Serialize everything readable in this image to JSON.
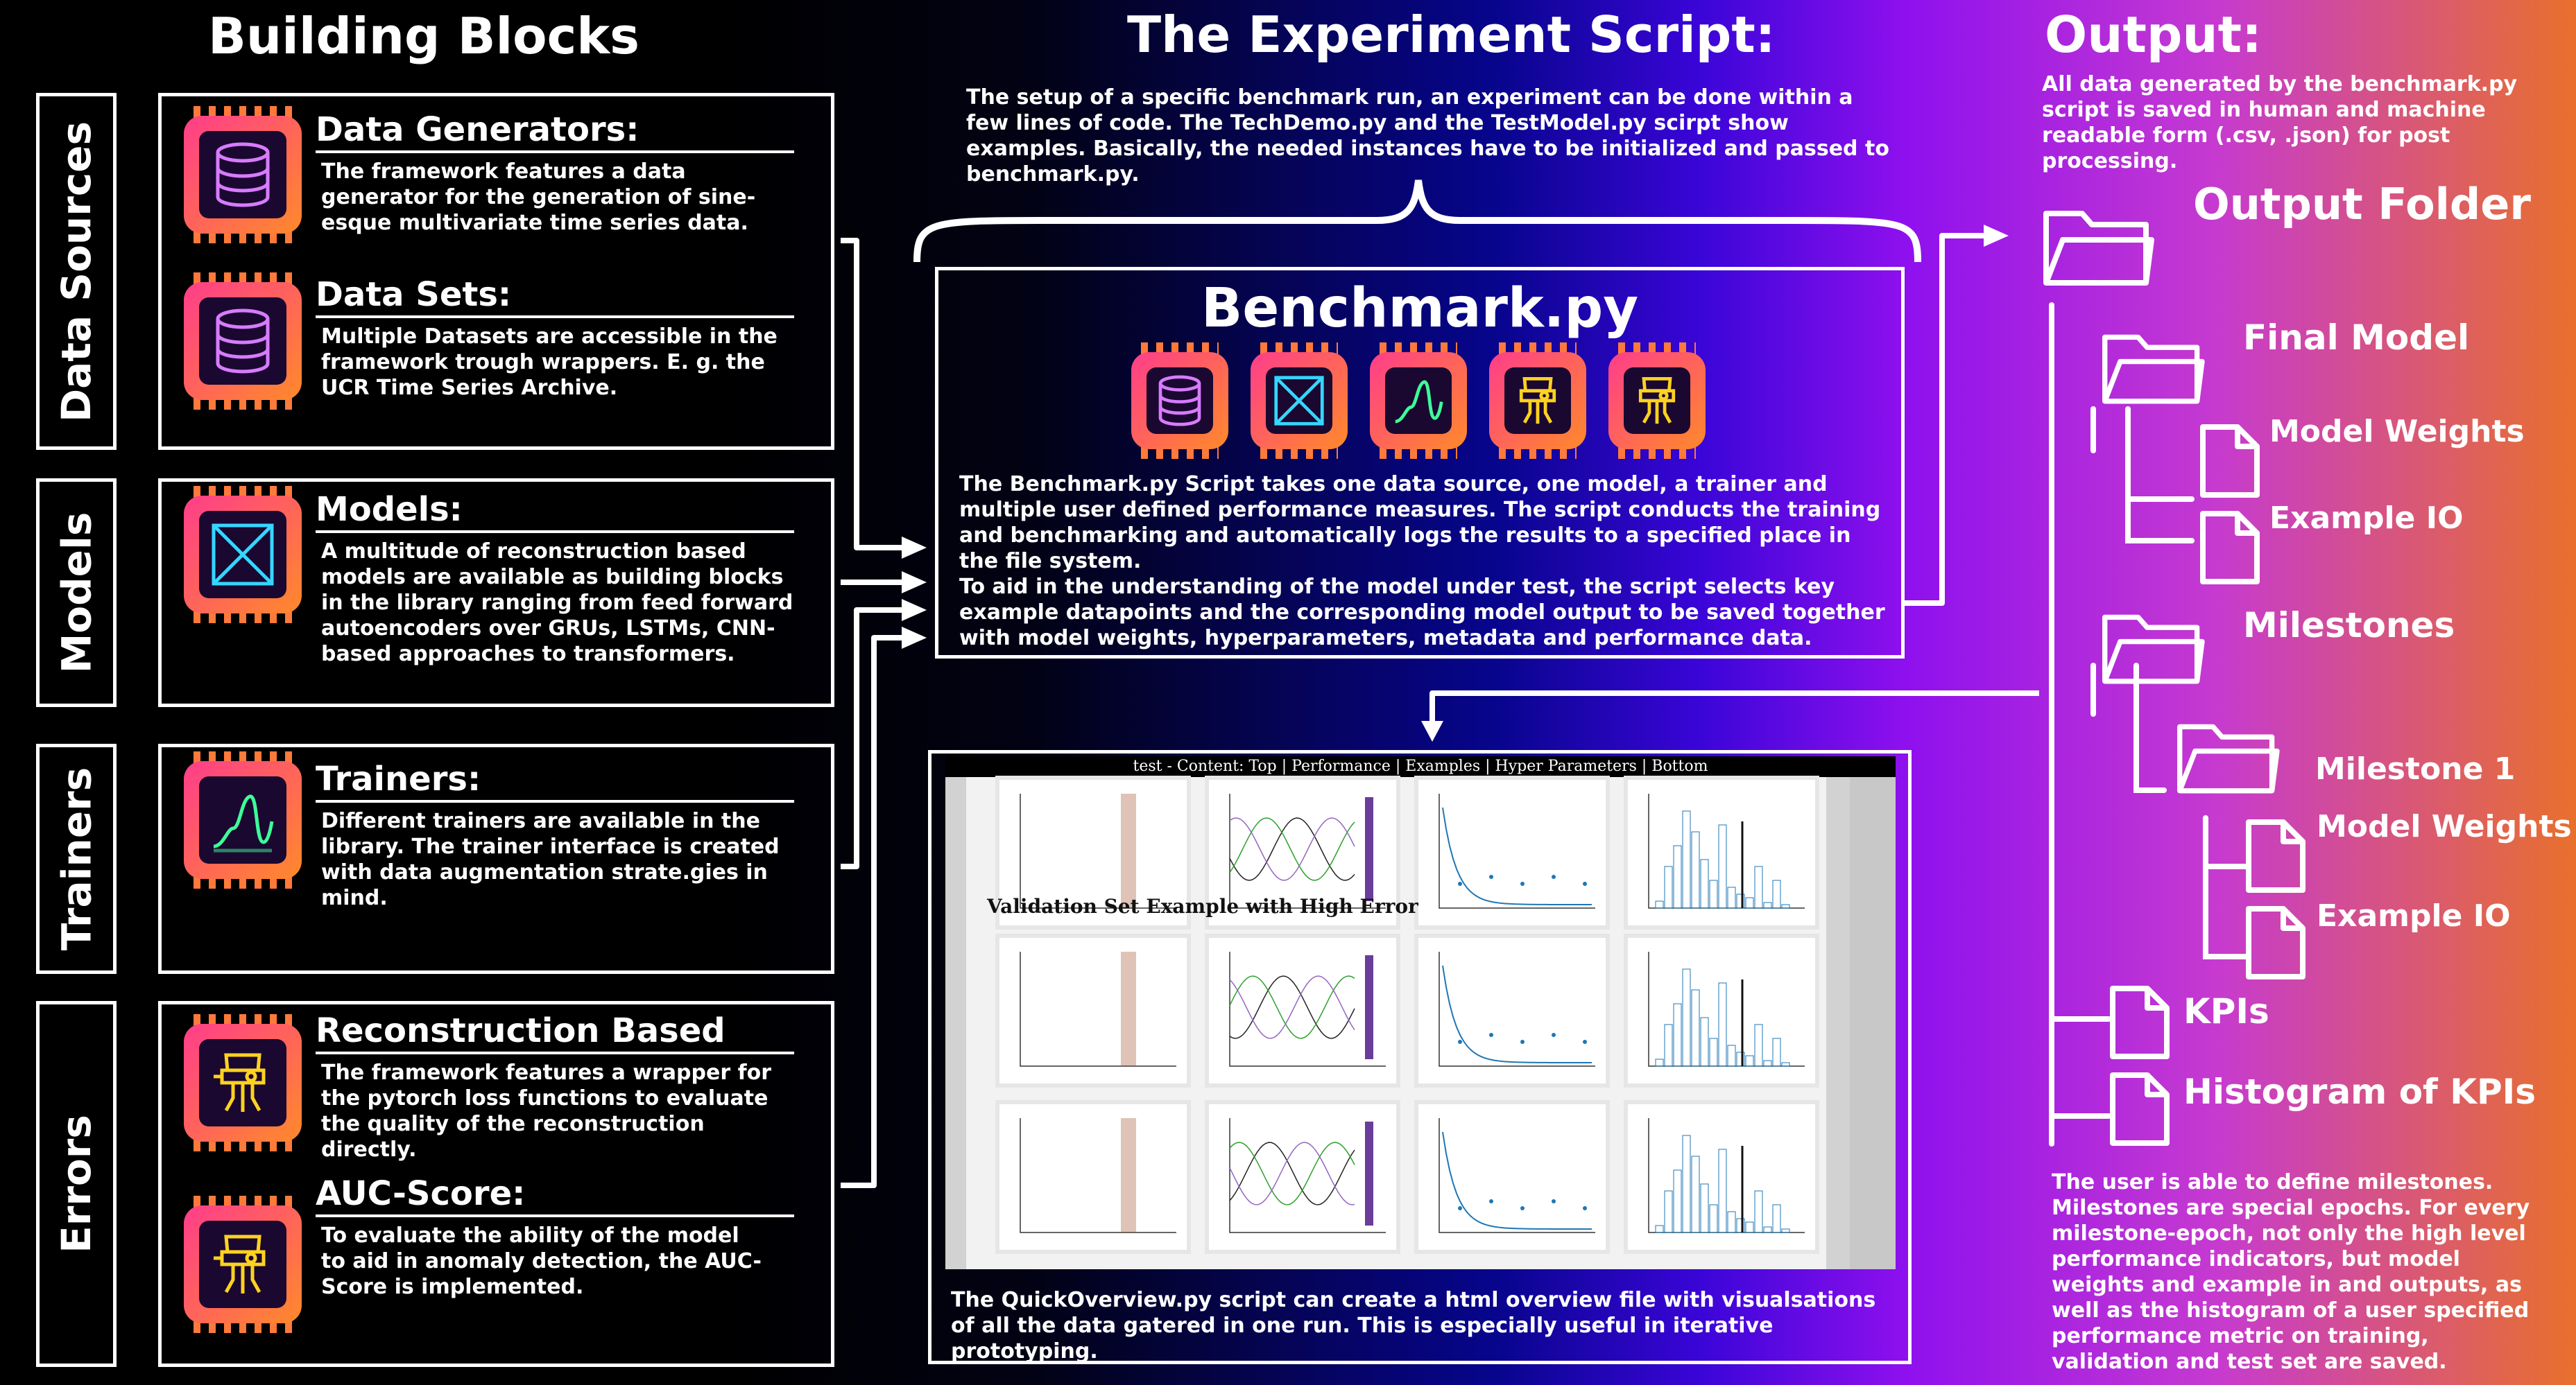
{
  "headings": {
    "building_blocks": "Building Blocks",
    "experiment": "The Experiment Script:",
    "output": "Output:"
  },
  "side_tabs": {
    "data_sources": "Data Sources",
    "models": "Models",
    "trainers": "Trainers",
    "errors": "Errors"
  },
  "blocks": {
    "data_generators": {
      "title": "Data Generators:",
      "text": "The framework features a data generator for the generation of sine-esque multivariate time series data."
    },
    "data_sets": {
      "title": "Data Sets:",
      "text": "Multiple Datasets are accessible in the framework trough wrappers. E. g. the UCR Time Series Archive."
    },
    "models": {
      "title": "Models:",
      "text": "A multitude of reconstruction based models are available as building blocks in the library ranging from feed forward autoencoders over GRUs, LSTMs, CNN-based approaches to transformers."
    },
    "trainers": {
      "title": "Trainers:",
      "text": "Different trainers are available in the library. The trainer interface is created with data augmentation strate.gies in mind."
    },
    "reconstruction": {
      "title": "Reconstruction Based",
      "text": "The framework features a wrapper for the pytorch loss functions to evaluate the quality of the reconstruction directly."
    },
    "auc": {
      "title": "AUC-Score:",
      "text": "To evaluate the ability of the model to aid in anomaly detection, the AUC-Score is implemented."
    }
  },
  "experiment": {
    "intro": "The setup of a specific benchmark run, an experiment can be done within a few lines of code. The TechDemo.py and the TestModel.py scirpt show examples. Basically, the needed instances have to be initialized and passed to benchmark.py.",
    "benchmark_title": "Benchmark.py",
    "benchmark_text_1": "The Benchmark.py Script takes one data source, one model, a trainer and multiple user defined performance measures. The script conducts the training and benchmarking and automatically logs the results to a specified place in the file system.",
    "benchmark_text_2": "To aid in the understanding of the model under test, the script selects key example datapoints and the corresponding model output to be saved together with model weights, hyperparameters, metadata and performance data.",
    "quickoverview_nav": "test - Content: Top | Performance | Examples | Hyper Parameters | Bottom",
    "quickoverview_section": "Validation Set Example with High Error",
    "quickoverview_text": "The QuickOverview.py script can create a html overview file with visualsations of all the data gatered in one run. This is especially useful in iterative prototyping."
  },
  "output": {
    "intro": "All data generated by the benchmark.py script is saved in human and machine readable form (.csv, .json) for post processing.",
    "output_folder": "Output Folder",
    "final_model": "Final Model",
    "model_weights_1": "Model Weights",
    "example_io_1": "Example IO",
    "milestones": "Milestones",
    "milestone_1": "Milestone 1",
    "model_weights_2": "Model Weights",
    "example_io_2": "Example IO",
    "kpis": "KPIs",
    "histogram": "Histogram of KPIs",
    "footer": "The user is able to define milestones. Milestones are special epochs. For every milestone-epoch, not only the high level performance indicators, but model weights and example in and outputs, as well as the histogram of a user specified performance metric on training, validation and test set are saved."
  },
  "icons": [
    "database-chip-icon",
    "autoencoder-chip-icon",
    "signal-chip-icon",
    "error-chip-icon",
    "folder-icon",
    "file-icon"
  ],
  "colors": {
    "chip_gradient_start": "#ff3d8b",
    "chip_gradient_end": "#ff8a2a",
    "neon_purple": "#c76bff",
    "neon_cyan": "#35d6ff",
    "neon_green": "#3dff9a",
    "neon_yellow": "#ffd21f"
  }
}
